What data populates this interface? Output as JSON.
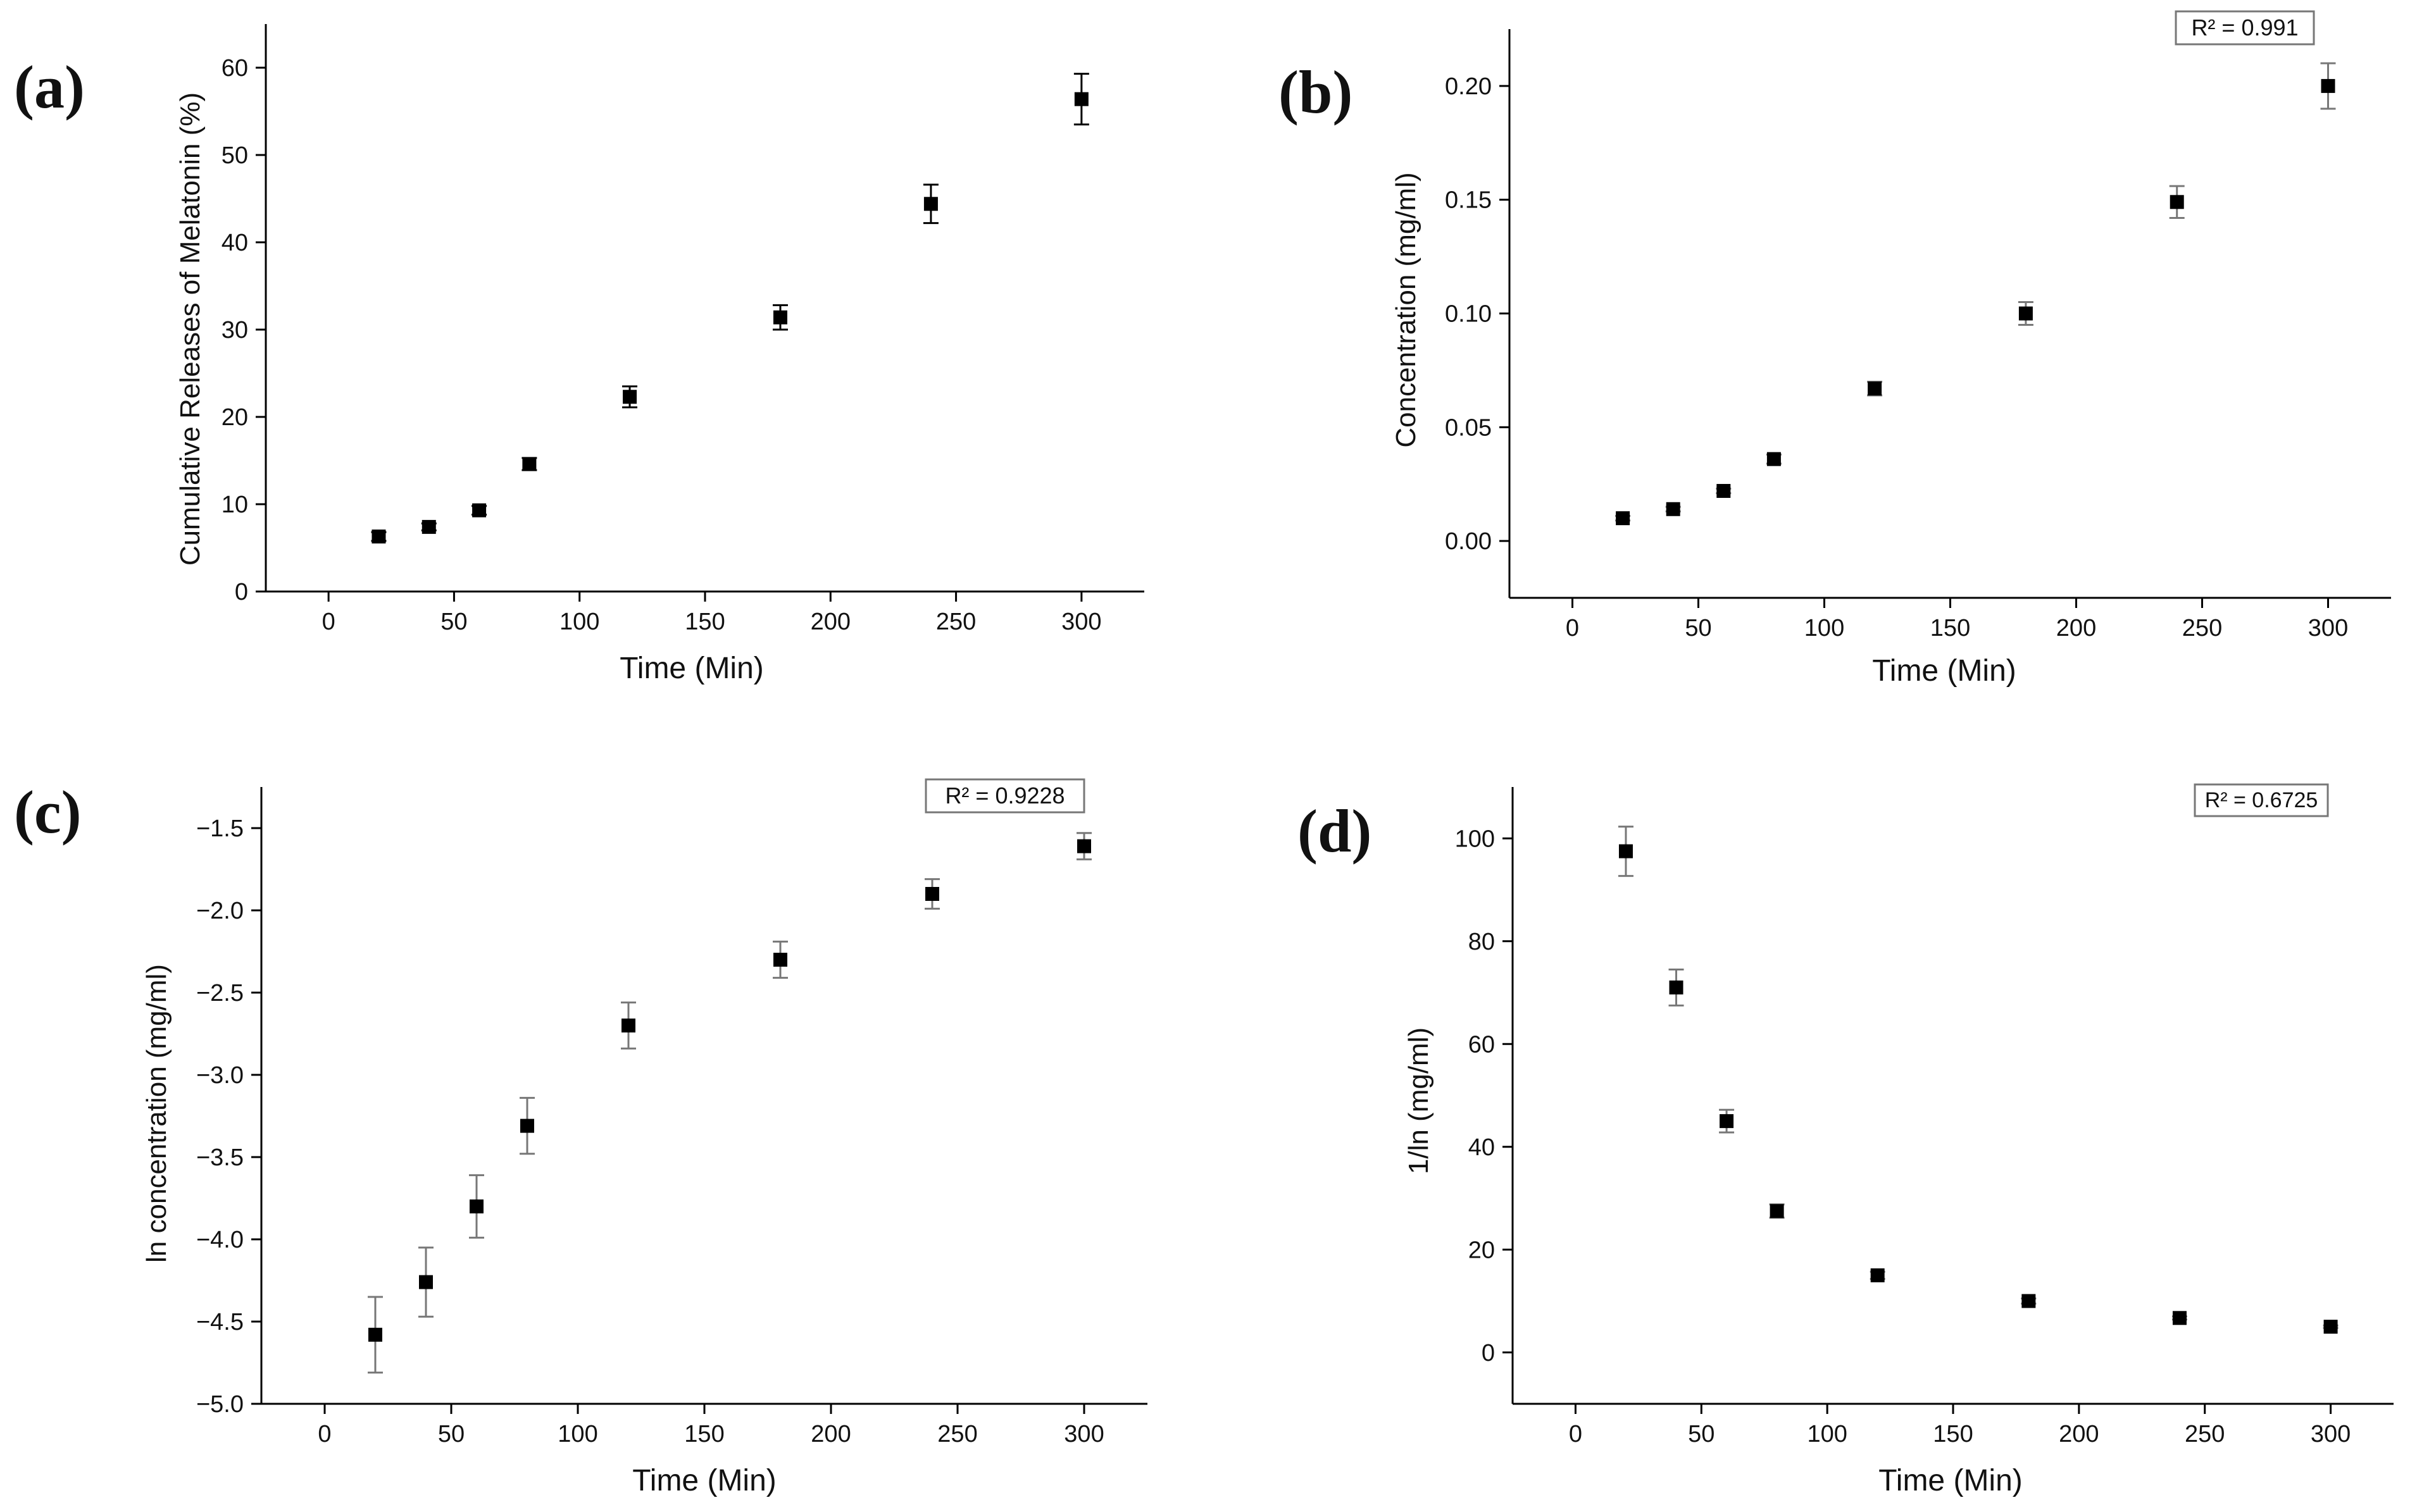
{
  "figure": {
    "background": "#ffffff",
    "marker_color": "#000000",
    "axis_color": "#000000"
  },
  "chart_data": [
    {
      "panel_label": "(a)",
      "type": "scatter",
      "xlabel": "Time (Min)",
      "ylabel": "Cumulative Releases of Melatonin (%)",
      "xlim": [
        -25,
        325
      ],
      "ylim": [
        0,
        65
      ],
      "xticks": [
        0,
        50,
        100,
        150,
        200,
        250,
        300
      ],
      "yticks": [
        0,
        10,
        20,
        30,
        40,
        50,
        60
      ],
      "x": [
        20,
        40,
        60,
        80,
        120,
        180,
        240,
        300
      ],
      "y": [
        6.3,
        7.4,
        9.3,
        14.6,
        22.3,
        31.4,
        44.4,
        56.4
      ],
      "yerr": [
        0.5,
        0.4,
        0.5,
        0.7,
        1.2,
        1.4,
        2.2,
        2.9
      ],
      "errorbar_color": "#000000",
      "annotation": ""
    },
    {
      "panel_label": "(b)",
      "type": "scatter",
      "xlabel": "Time (Min)",
      "ylabel": "Concentration (mg/ml)",
      "xlim": [
        -25,
        325
      ],
      "ylim": [
        -0.025,
        0.225
      ],
      "xticks": [
        0,
        50,
        100,
        150,
        200,
        250,
        300
      ],
      "yticks": [
        0.0,
        0.05,
        0.1,
        0.15,
        0.2
      ],
      "yticklabels": [
        "0.00",
        "0.05",
        "0.10",
        "0.15",
        "0.20"
      ],
      "x": [
        20,
        40,
        60,
        80,
        120,
        180,
        240,
        300
      ],
      "y": [
        0.01,
        0.014,
        0.022,
        0.036,
        0.067,
        0.1,
        0.149,
        0.2
      ],
      "yerr": [
        0.001,
        0.001,
        0.001,
        0.002,
        0.003,
        0.005,
        0.007,
        0.01
      ],
      "errorbar_color": "#777777",
      "annotation": "R² = 0.991"
    },
    {
      "panel_label": "(c)",
      "type": "scatter",
      "xlabel": "Time (Min)",
      "ylabel": "ln concentration (mg/ml)",
      "xlim": [
        -25,
        325
      ],
      "ylim": [
        -5.0,
        -1.25
      ],
      "xticks": [
        0,
        50,
        100,
        150,
        200,
        250,
        300
      ],
      "yticks": [
        -5.0,
        -4.5,
        -4.0,
        -3.5,
        -3.0,
        -2.5,
        -2.0,
        -1.5
      ],
      "yticklabels": [
        "−5.0",
        "−4.5",
        "−4.0",
        "−3.5",
        "−3.0",
        "−2.5",
        "−2.0",
        "−1.5"
      ],
      "x": [
        20,
        40,
        60,
        80,
        120,
        180,
        240,
        300
      ],
      "y": [
        -4.58,
        -4.26,
        -3.8,
        -3.31,
        -2.7,
        -2.3,
        -1.9,
        -1.61
      ],
      "yerr": [
        0.23,
        0.21,
        0.19,
        0.17,
        0.14,
        0.11,
        0.09,
        0.08
      ],
      "errorbar_color": "#777777",
      "annotation": "R² = 0.9228"
    },
    {
      "panel_label": "(d)",
      "type": "scatter",
      "xlabel": "Time (Min)",
      "ylabel": "1/ln (mg/ml)",
      "xlim": [
        -25,
        325
      ],
      "ylim": [
        -10,
        110
      ],
      "xticks": [
        0,
        50,
        100,
        150,
        200,
        250,
        300
      ],
      "yticks": [
        0,
        20,
        40,
        60,
        80,
        100
      ],
      "x": [
        20,
        40,
        60,
        80,
        120,
        180,
        240,
        300
      ],
      "y": [
        97.5,
        71.0,
        45.0,
        27.5,
        15.0,
        10.0,
        6.7,
        5.0
      ],
      "yerr": [
        4.8,
        3.5,
        2.2,
        1.3,
        0.7,
        0.5,
        0.3,
        0.25
      ],
      "errorbar_color": "#777777",
      "annotation": "R² = 0.6725"
    }
  ]
}
